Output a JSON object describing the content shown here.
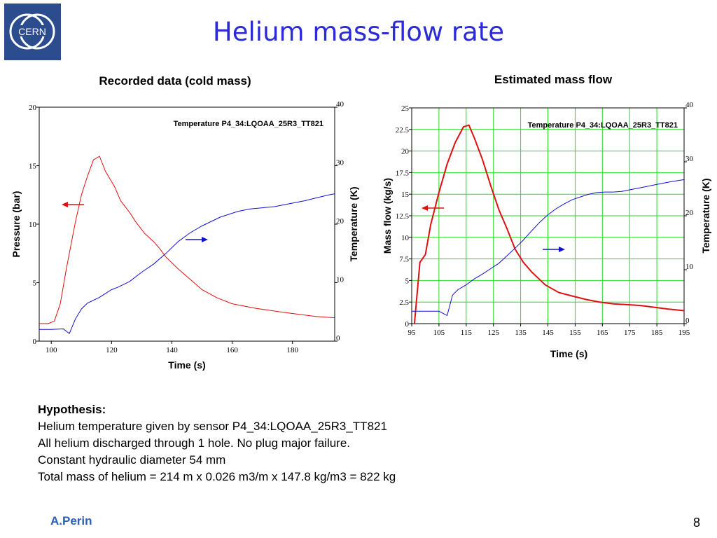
{
  "slide": {
    "title": "Helium mass-flow rate",
    "author": "A.Perin",
    "page_number": "8",
    "logo_text": "CERN"
  },
  "hypothesis": {
    "heading": "Hypothesis:",
    "lines": [
      "Helium temperature given by sensor P4_34:LQOAA_25R3_TT821",
      "All helium discharged through 1 hole. No plug major failure.",
      "Constant hydraulic diameter 54 mm",
      "Total mass of helium = 214 m x  0.026 m3/m x  147.8 kg/m3 = 822 kg"
    ]
  },
  "colors": {
    "title": "#2a2ad6",
    "pressure": "#e01010",
    "temperature": "#1010d0",
    "grid": "#22dd22",
    "author": "#2a5fb8",
    "logo": "#2b4d8e"
  },
  "chart_data": [
    {
      "type": "line",
      "title": "Recorded data (cold  mass)",
      "annotation": "Temperature P4_34:LQOAA_25R3_TT821",
      "xlabel": "Time (s)",
      "ylabel_left": "Pressure (bar)",
      "ylabel_right": "Temperature (K)",
      "xlim": [
        96,
        194
      ],
      "ylim_left": [
        0,
        20
      ],
      "ylim_right": [
        0,
        40
      ],
      "xticks": [
        100,
        120,
        140,
        160,
        180
      ],
      "yticks_left": [
        0,
        5,
        10,
        15,
        20
      ],
      "yticks_right": [
        0,
        10,
        20,
        30,
        40
      ],
      "grid": false,
      "series": [
        {
          "axis": "left",
          "color": "#e01010",
          "x": [
            96,
            99,
            101,
            103,
            105,
            108,
            110,
            112,
            114,
            116,
            118,
            121,
            123,
            126,
            128,
            131,
            134,
            136,
            138,
            142,
            146,
            150,
            155,
            160,
            168,
            176,
            182,
            188,
            194
          ],
          "y": [
            1.5,
            1.5,
            1.7,
            3.2,
            6.2,
            10.2,
            12.5,
            14.1,
            15.5,
            15.8,
            14.5,
            13.2,
            12,
            11,
            10.2,
            9.2,
            8.5,
            7.9,
            7.2,
            6.2,
            5.3,
            4.4,
            3.7,
            3.2,
            2.8,
            2.5,
            2.3,
            2.1,
            2.0
          ]
        },
        {
          "axis": "right",
          "color": "#1010d0",
          "x": [
            96,
            100,
            104,
            106,
            108,
            110,
            112,
            116,
            120,
            122,
            126,
            130,
            134,
            138,
            142,
            146,
            150,
            156,
            162,
            166,
            170,
            174,
            178,
            184,
            188,
            192,
            194
          ],
          "y": [
            2,
            2,
            2.1,
            1.3,
            3.8,
            5.5,
            6.5,
            7.5,
            8.8,
            9.2,
            10.2,
            11.8,
            13.2,
            15,
            17,
            18.5,
            19.7,
            21.2,
            22.2,
            22.6,
            22.8,
            23,
            23.4,
            24,
            24.5,
            25,
            25.2
          ]
        }
      ]
    },
    {
      "type": "line",
      "title": "Estimated mass flow",
      "annotation": "Temperature P4_34:LQOAA_25R3_TT821",
      "xlabel": "Time (s)",
      "ylabel_left": "Mass flow (kg/s)",
      "ylabel_right": "Temperature (K)",
      "xlim": [
        95,
        195
      ],
      "ylim_left": [
        0,
        25
      ],
      "ylim_right": [
        0,
        40
      ],
      "xticks": [
        95,
        105,
        115,
        125,
        135,
        145,
        155,
        165,
        175,
        185,
        195
      ],
      "yticks_left": [
        "0",
        "2.5",
        "5",
        "7.5",
        "10",
        "12.5",
        "15",
        "17.5",
        "20",
        "22.5",
        "25"
      ],
      "yticks_right": [
        0,
        10,
        20,
        30,
        40
      ],
      "grid": true,
      "series": [
        {
          "axis": "left",
          "color": "#e01010",
          "x": [
            96,
            98,
            100,
            102,
            105,
            108,
            111,
            114,
            116,
            118,
            121,
            124,
            127,
            130,
            133,
            136,
            139,
            144,
            149,
            154,
            159,
            164,
            169,
            174,
            179,
            184,
            189,
            195
          ],
          "y": [
            0,
            7.1,
            8,
            11.5,
            15.2,
            18.5,
            21,
            22.8,
            23,
            21.5,
            19,
            16,
            13.2,
            11,
            8.6,
            7.1,
            6,
            4.5,
            3.6,
            3.2,
            2.8,
            2.5,
            2.3,
            2.2,
            2.1,
            1.9,
            1.7,
            1.5
          ]
        },
        {
          "axis": "right",
          "color": "#1010d0",
          "x": [
            95,
            100,
            105,
            108,
            110,
            112,
            115,
            118,
            121,
            124,
            127,
            130,
            133,
            136,
            139,
            142,
            145,
            148,
            151,
            154,
            157,
            160,
            163,
            166,
            169,
            172,
            175,
            180,
            185,
            190,
            195
          ],
          "y": [
            2.3,
            2.3,
            2.3,
            1.5,
            5.3,
            6.3,
            7.2,
            8.3,
            9.2,
            10.2,
            11.2,
            12.6,
            14,
            15.5,
            17.2,
            18.8,
            20.2,
            21.3,
            22.2,
            23,
            23.5,
            24,
            24.3,
            24.4,
            24.4,
            24.5,
            24.8,
            25.3,
            25.8,
            26.3,
            26.7
          ]
        }
      ]
    }
  ]
}
